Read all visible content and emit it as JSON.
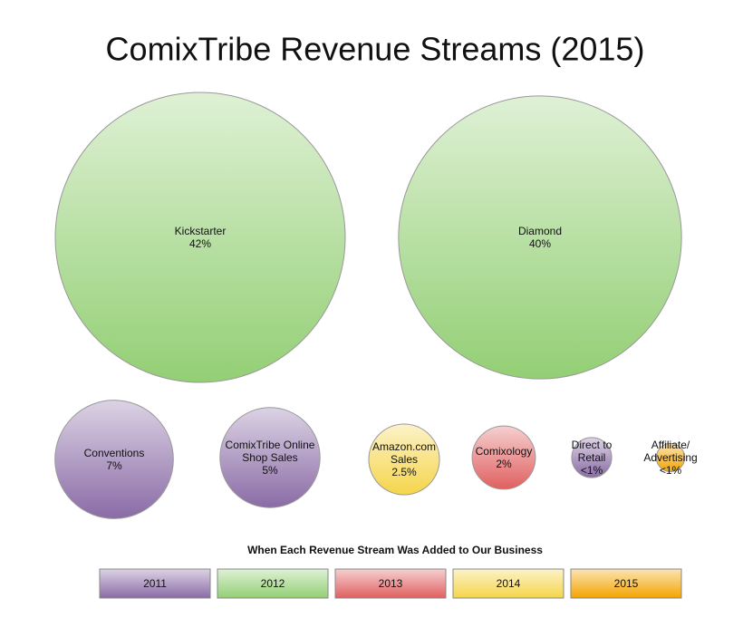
{
  "chart_data": {
    "type": "bubble",
    "title": "ComixTribe Revenue Streams (2015)",
    "categories": [
      "Kickstarter",
      "Diamond",
      "Conventions",
      "ComixTribe Online Shop Sales",
      "Amazon.com Sales",
      "Comixology",
      "Direct to Retail",
      "Affiliate/ Advertising"
    ],
    "values": [
      42,
      40,
      7,
      5,
      2.5,
      2,
      0.8,
      0.4
    ],
    "value_labels": [
      "42%",
      "40%",
      "7%",
      "5%",
      "2.5%",
      "2%",
      "<1%",
      "<1%"
    ],
    "colors": [
      "#93cf74",
      "#93cf74",
      "#8a6ba6",
      "#8a6ba6",
      "#f5d54a",
      "#e06060",
      "#8a6ba6",
      "#f4a400"
    ],
    "legend_title": "When Each Revenue Stream Was Added to Our Business",
    "legend": [
      {
        "label": "2011",
        "color": "#8a6ba6"
      },
      {
        "label": "2012",
        "color": "#93cf74"
      },
      {
        "label": "2013",
        "color": "#e06060"
      },
      {
        "label": "2014",
        "color": "#f5d54a"
      },
      {
        "label": "2015",
        "color": "#f4a400"
      }
    ]
  }
}
